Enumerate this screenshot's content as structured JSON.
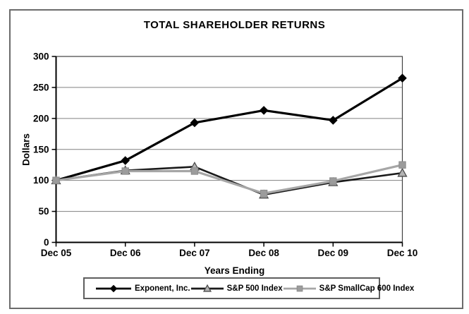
{
  "chart_data": {
    "type": "line",
    "title": "TOTAL SHAREHOLDER RETURNS",
    "xlabel": "Years Ending",
    "ylabel": "Dollars",
    "categories": [
      "Dec 05",
      "Dec 06",
      "Dec 07",
      "Dec 08",
      "Dec 09",
      "Dec 10"
    ],
    "ylim": [
      0,
      300
    ],
    "yticks": [
      0,
      50,
      100,
      150,
      200,
      250,
      300
    ],
    "grid": true,
    "legend_position": "bottom",
    "series": [
      {
        "name": "Exponent, Inc.",
        "values": [
          100,
          132,
          193,
          213,
          197,
          265
        ],
        "color": "#000000",
        "line_width": 3.2,
        "marker": "diamond",
        "marker_fill": "#000000",
        "marker_stroke": "#000000"
      },
      {
        "name": "S&P 500 Index",
        "values": [
          100,
          116,
          122,
          77,
          97,
          112
        ],
        "color": "#1a1a1a",
        "line_width": 2.6,
        "marker": "triangle",
        "marker_fill": "#b3b3b3",
        "marker_stroke": "#4d4d4d"
      },
      {
        "name": "S&P SmallCap 600 Index",
        "values": [
          100,
          115,
          115,
          79,
          99,
          125
        ],
        "color": "#a6a6a6",
        "line_width": 3.2,
        "marker": "square",
        "marker_fill": "#9c9c9c",
        "marker_stroke": "#8c8c8c"
      }
    ],
    "colors": {
      "gridline": "#808080",
      "plot_border": "#404040",
      "axis": "#000000"
    }
  }
}
